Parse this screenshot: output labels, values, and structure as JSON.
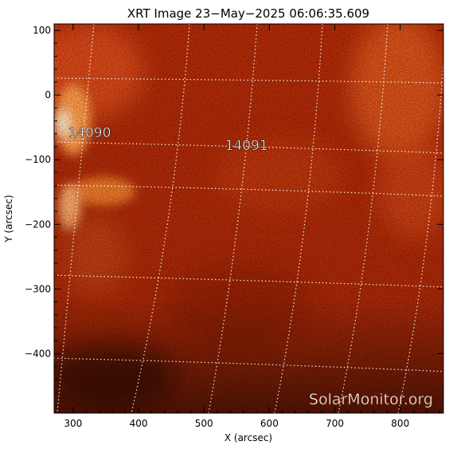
{
  "title": "XRT Image 23−May−2025 06:06:35.609",
  "xlabel": "X (arcsec)",
  "ylabel": "Y (arcsec)",
  "x_ticks": [
    {
      "label": "300",
      "value": 300
    },
    {
      "label": "400",
      "value": 400
    },
    {
      "label": "500",
      "value": 500
    },
    {
      "label": "600",
      "value": 600
    },
    {
      "label": "700",
      "value": 700
    },
    {
      "label": "800",
      "value": 800
    }
  ],
  "y_ticks": [
    {
      "label": "100",
      "value": 100
    },
    {
      "label": "0",
      "value": 0
    },
    {
      "label": "−100",
      "value": -100
    },
    {
      "label": "−200",
      "value": -200
    },
    {
      "label": "−300",
      "value": -300
    },
    {
      "label": "−400",
      "value": -400
    }
  ],
  "xlim": [
    271,
    866
  ],
  "ylim": [
    -492,
    110
  ],
  "regions": [
    {
      "label": "14090",
      "x": 325,
      "y": -65
    },
    {
      "label": "14091",
      "x": 565,
      "y": -85
    }
  ],
  "watermark": "SolarMonitor.org",
  "colors": {
    "image_base": "#b02a08",
    "bright": "#ffe8c8",
    "grid": "#ffffff",
    "axis": "#000000"
  }
}
